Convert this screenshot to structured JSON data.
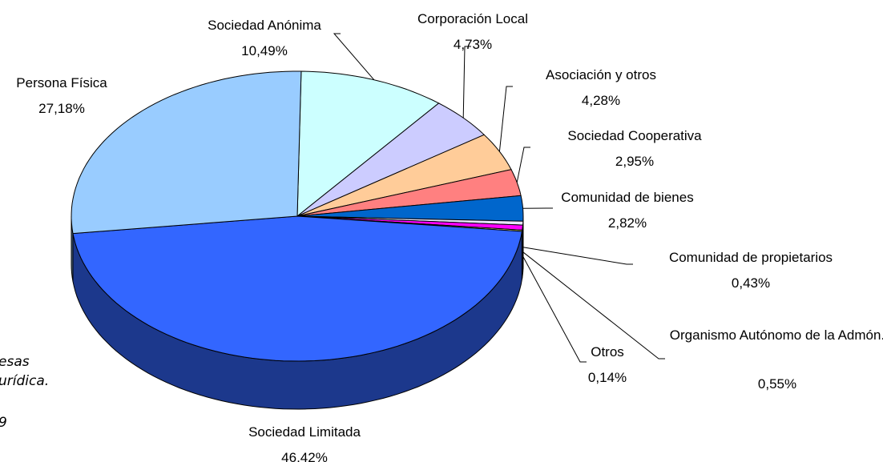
{
  "chart_data": {
    "type": "pie",
    "categories": [
      "Sociedad Anónima",
      "Corporación Local",
      "Asociación y otros",
      "Sociedad Cooperativa",
      "Comunidad de bienes",
      "Comunidad de propietarios",
      "Organismo Autónomo de la Admón.",
      "Otros",
      "Sociedad Limitada",
      "Persona Física"
    ],
    "values": [
      10.49,
      4.73,
      4.28,
      2.95,
      2.82,
      0.43,
      0.55,
      0.14,
      46.42,
      27.18
    ],
    "value_labels": [
      "10,49%",
      "4,73%",
      "4,28%",
      "2,95%",
      "2,82%",
      "0,43%",
      "0,55%",
      "0,14%",
      "46,42%",
      "27,18%"
    ],
    "colors": [
      "#ccffff",
      "#ccccff",
      "#ffcc99",
      "#ff8080",
      "#0066cc",
      "#e6e6ff",
      "#ff00ff",
      "#ffff99",
      "#3366ff",
      "#99ccff"
    ],
    "annotations": [
      "esas",
      "urídica.",
      "9"
    ]
  }
}
